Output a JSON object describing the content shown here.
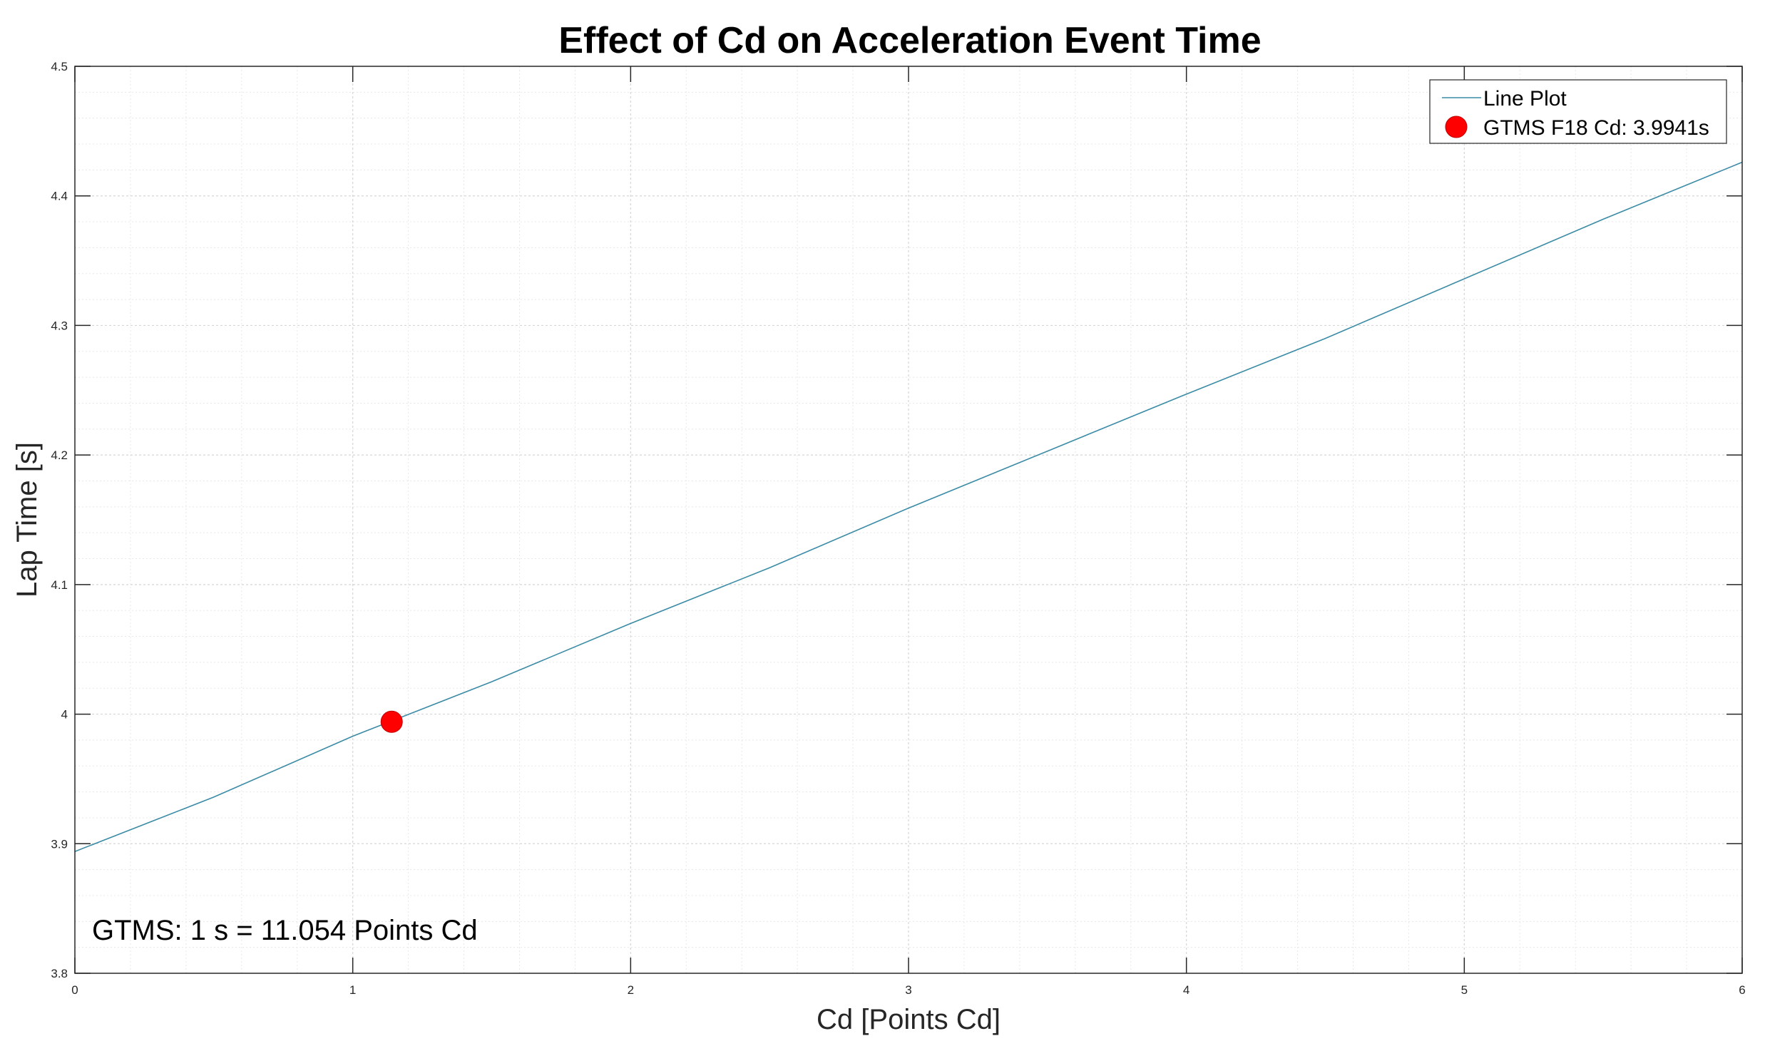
{
  "chart_data": {
    "type": "line",
    "title": "Effect of Cd on Acceleration Event Time",
    "xlabel": "Cd [Points Cd]",
    "ylabel": "Lap Time [s]",
    "xlim": [
      0,
      6
    ],
    "ylim": [
      3.8,
      4.5
    ],
    "xticks": [
      0,
      1,
      2,
      3,
      4,
      5,
      6
    ],
    "xtick_labels": [
      "0",
      "1",
      "2",
      "3",
      "4",
      "5",
      "6"
    ],
    "yticks": [
      3.8,
      3.9,
      4.0,
      4.1,
      4.2,
      4.3,
      4.4,
      4.5
    ],
    "ytick_labels": [
      "3.8",
      "3.9",
      "4",
      "4.1",
      "4.2",
      "4.3",
      "4.4",
      "4.5"
    ],
    "grid": true,
    "minor_grid": true,
    "legend_position": "top-right",
    "series": [
      {
        "name": "Line Plot",
        "kind": "line",
        "color": "#3b8ba6",
        "x": [
          0,
          0.5,
          1,
          1.5,
          2,
          2.5,
          3,
          3.5,
          4,
          4.5,
          5,
          5.5,
          6
        ],
        "y": [
          3.894,
          3.936,
          3.983,
          4.025,
          4.07,
          4.113,
          4.159,
          4.203,
          4.247,
          4.29,
          4.336,
          4.382,
          4.426
        ]
      },
      {
        "name": "GTMS F18 Cd: 3.9941s",
        "kind": "marker",
        "color": "#ff0000",
        "x": [
          1.14
        ],
        "y": [
          3.9941
        ]
      }
    ],
    "annotations": [
      {
        "text": "GTMS: 1 s = 11.054 Points Cd",
        "position": "bottom-left"
      }
    ]
  }
}
